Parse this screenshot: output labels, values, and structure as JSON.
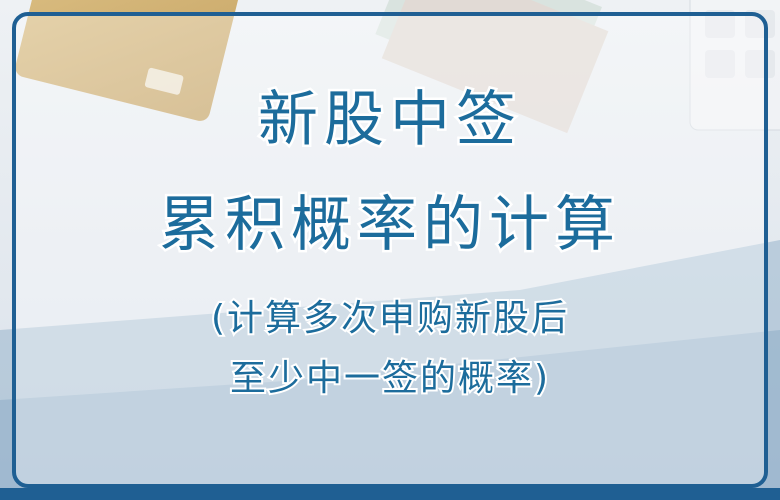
{
  "title": {
    "lines": [
      "新股中签",
      "累积概率的计算"
    ]
  },
  "subtitle": {
    "lines": [
      "(计算多次申购新股后",
      "至少中一签的概率)"
    ]
  }
}
